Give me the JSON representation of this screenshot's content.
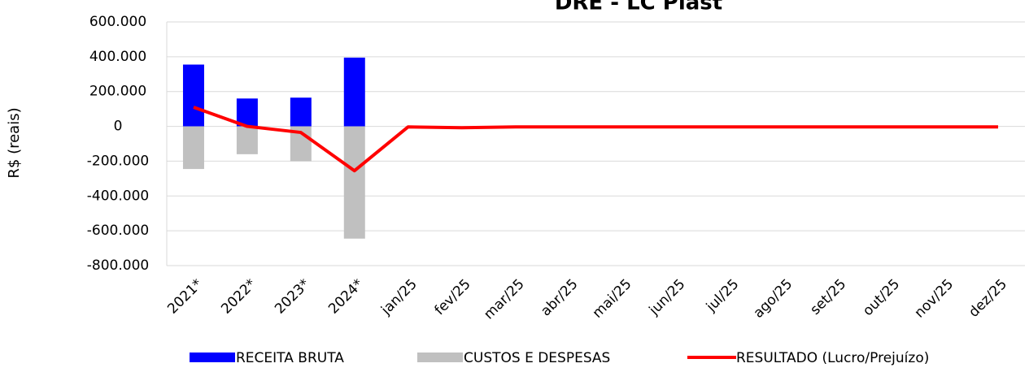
{
  "chart_data": {
    "type": "bar_line",
    "title": "DRE - LC Plast",
    "y_label": "R$ (reais)",
    "categories": [
      "2021*",
      "2022*",
      "2023*",
      "2024*",
      "jan/25",
      "fev/25",
      "mar/25",
      "abr/25",
      "mai/25",
      "jun/25",
      "jul/25",
      "ago/25",
      "set/25",
      "out/25",
      "nov/25",
      "dez/25"
    ],
    "series": [
      {
        "name": "RECEITA BRUTA",
        "type": "bar",
        "color": "#0000ff",
        "values": [
          355000,
          160000,
          165000,
          395000,
          0,
          0,
          0,
          0,
          0,
          0,
          0,
          0,
          0,
          0,
          0,
          0
        ]
      },
      {
        "name": "CUSTOS E DESPESAS",
        "type": "bar",
        "color": "#c0c0c0",
        "values": [
          -245000,
          -160000,
          -200000,
          -645000,
          0,
          0,
          0,
          0,
          0,
          0,
          0,
          0,
          0,
          0,
          0,
          0
        ]
      },
      {
        "name": "RESULTADO (Lucro/Prejuízo)",
        "type": "line",
        "color": "#ff0000",
        "values": [
          110000,
          0,
          -35000,
          -255000,
          -3000,
          -8000,
          -3000,
          -3000,
          -3000,
          -3000,
          -3000,
          -3000,
          -3000,
          -3000,
          -3000,
          -3000
        ]
      }
    ],
    "ylim": [
      -800000,
      600000
    ],
    "yticks": [
      {
        "value": 600000,
        "label": "600.000"
      },
      {
        "value": 400000,
        "label": "400.000"
      },
      {
        "value": 200000,
        "label": "200.000"
      },
      0,
      {
        "value": -200000,
        "label": "-200.000"
      },
      {
        "value": -400000,
        "label": "-400.000"
      },
      {
        "value": -600000,
        "label": "-600.000"
      },
      {
        "value": -800000,
        "label": "-800.000"
      }
    ],
    "negative_tick_color": "#ff0000",
    "grid": true
  }
}
